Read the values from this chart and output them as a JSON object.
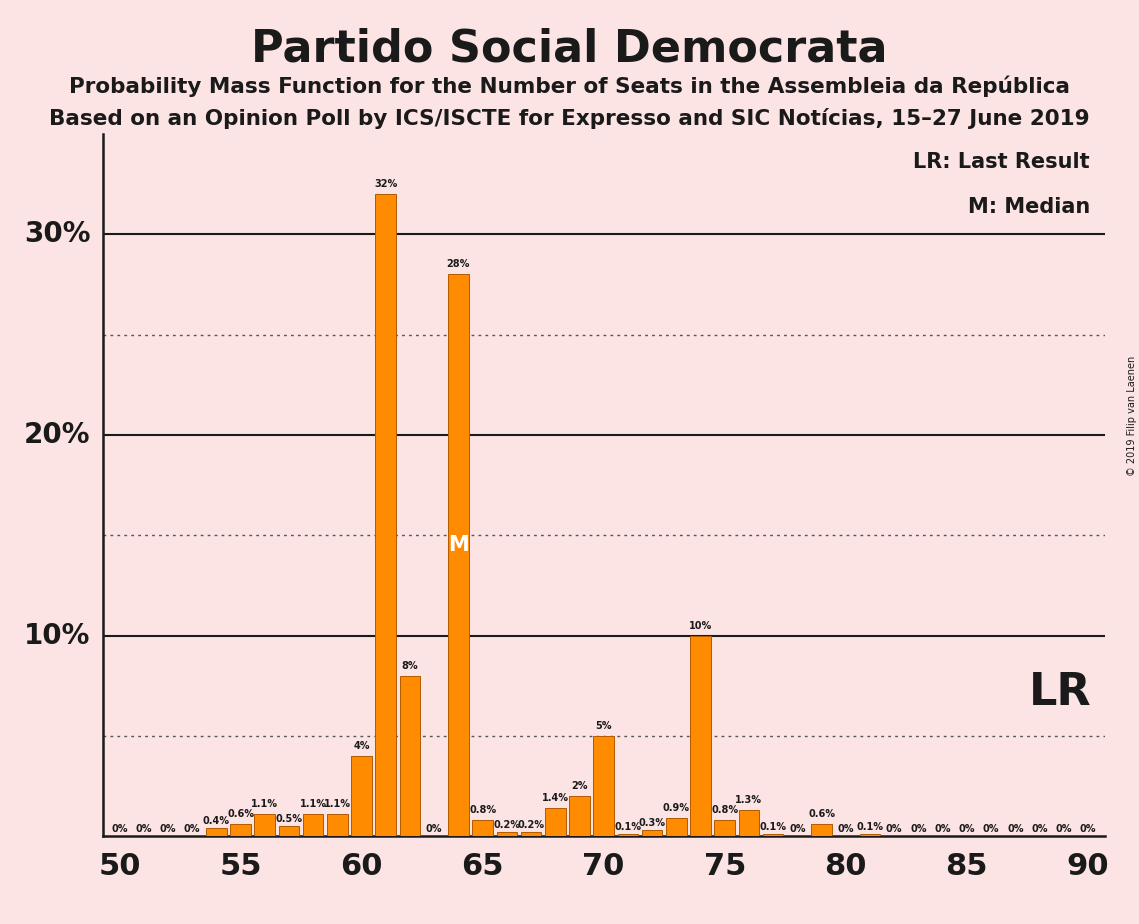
{
  "title": "Partido Social Democrata",
  "subtitle1": "Probability Mass Function for the Number of Seats in the Assembleia da República",
  "subtitle2": "Based on an Opinion Poll by ICS/ISCTE for Expresso and SIC Notícias, 15–27 June 2019",
  "copyright": "© 2019 Filip van Laenen",
  "legend_lr": "LR: Last Result",
  "legend_m": "M: Median",
  "lr_label": "LR",
  "m_label": "M",
  "x_min": 50,
  "x_max": 90,
  "y_max": 35,
  "background_color": "#fce4e4",
  "bar_color": "#ff8c00",
  "bar_edge_color": "#b35a00",
  "lr_seat": 74,
  "median_seat": 64,
  "seats": [
    50,
    51,
    52,
    53,
    54,
    55,
    56,
    57,
    58,
    59,
    60,
    61,
    62,
    63,
    64,
    65,
    66,
    67,
    68,
    69,
    70,
    71,
    72,
    73,
    74,
    75,
    76,
    77,
    78,
    79,
    80,
    81,
    82,
    83,
    84,
    85,
    86,
    87,
    88,
    89,
    90
  ],
  "probabilities": [
    0.0,
    0.0,
    0.0,
    0.0,
    0.4,
    0.6,
    1.1,
    0.5,
    1.1,
    1.1,
    4.0,
    32.0,
    8.0,
    0.0,
    28.0,
    0.8,
    0.2,
    0.2,
    1.4,
    2.0,
    5.0,
    0.1,
    0.3,
    0.9,
    10.0,
    0.8,
    1.3,
    0.1,
    0.0,
    0.6,
    0.0,
    0.1,
    0.0,
    0.0,
    0.0,
    0.0,
    0.0,
    0.0,
    0.0,
    0.0,
    0.0
  ],
  "label_map": {
    "50": "0%",
    "51": "0%",
    "52": "0%",
    "53": "0%",
    "54": "0.4%",
    "55": "0.6%",
    "56": "1.1%",
    "57": "0.5%",
    "58": "1.1%",
    "59": "1.1%",
    "60": "4%",
    "61": "32%",
    "62": "8%",
    "63": "0%",
    "64": "28%",
    "65": "0.8%",
    "66": "0.2%",
    "67": "0.2%",
    "68": "1.4%",
    "69": "2%",
    "70": "5%",
    "71": "0.1%",
    "72": "0.3%",
    "73": "0.9%",
    "74": "10%",
    "75": "0.8%",
    "76": "1.3%",
    "77": "0.1%",
    "78": "0%",
    "79": "0.6%",
    "80": "0%",
    "81": "0.1%",
    "82": "0%",
    "83": "0%",
    "84": "0%",
    "85": "0%",
    "86": "0%",
    "87": "0%",
    "88": "0%",
    "89": "0%",
    "90": "0%"
  },
  "solid_gridlines": [
    10,
    20,
    30
  ],
  "dotted_gridlines": [
    5,
    15,
    25
  ],
  "ytick_values": [
    10,
    20,
    30
  ],
  "ytick_labels": [
    "10%",
    "20%",
    "30%"
  ],
  "xtick_positions": [
    50,
    55,
    60,
    65,
    70,
    75,
    80,
    85,
    90
  ]
}
